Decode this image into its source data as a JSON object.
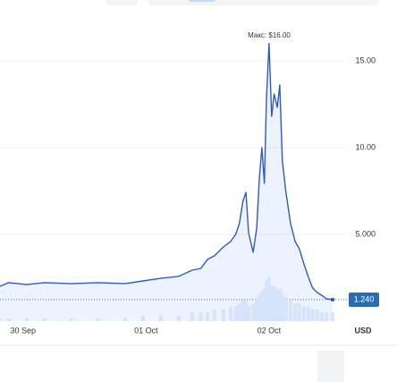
{
  "chart_data": {
    "type": "line",
    "max_label": "Макс: $16.00",
    "last_label": "1.240",
    "currency": "USD",
    "x": [
      -4.5,
      -2.8,
      0.7,
      4.2,
      9.4,
      14.7,
      19.9,
      23.4,
      26.9,
      30.4,
      33.0,
      34.7,
      36.0,
      37.3,
      39.1,
      40.5,
      41.5,
      42.2,
      42.9,
      43.5,
      44.0,
      44.9,
      45.6,
      46.1,
      46.6,
      47.1,
      47.5,
      48.0,
      48.5,
      49.0,
      49.6,
      50.1,
      50.6,
      51.3,
      52.2,
      53.1,
      53.9,
      54.8,
      55.7,
      56.5,
      57.4,
      58.3,
      59.2,
      60.4
    ],
    "series": [
      {
        "color": "#2d5bc4",
        "values": [
          2.01,
          2.22,
          2.11,
          2.22,
          2.16,
          2.22,
          2.16,
          2.32,
          2.47,
          2.58,
          2.94,
          3.04,
          3.56,
          3.76,
          4.28,
          4.59,
          5.0,
          5.62,
          6.91,
          7.42,
          5.1,
          3.97,
          5.36,
          8.2,
          10.0,
          7.94,
          12.84,
          16.0,
          11.8,
          13.09,
          12.32,
          13.61,
          9.23,
          7.42,
          5.62,
          4.59,
          4.18,
          3.3,
          2.53,
          1.91,
          1.65,
          1.49,
          1.29,
          1.24
        ]
      },
      {
        "color": "#d6e4fb",
        "axis": "y2",
        "values": [
          1,
          1,
          1,
          1,
          1,
          1,
          1,
          2,
          2,
          2,
          3,
          3,
          3,
          4,
          4,
          5,
          5,
          6,
          7,
          7,
          5,
          6,
          8,
          9,
          10,
          11,
          14,
          15,
          12,
          12,
          11,
          11,
          9,
          8,
          7,
          6,
          6,
          5,
          5,
          4,
          4,
          3,
          3,
          3
        ]
      }
    ],
    "xlim": [
      -4.5,
      62.5
    ],
    "xticks": [
      {
        "value": 0,
        "label": "30 Sep"
      },
      {
        "value": 24,
        "label": "01 Oct"
      },
      {
        "value": 48,
        "label": "02 Oct"
      }
    ],
    "ylim": [
      0,
      17
    ],
    "yticks": [
      {
        "value": 5,
        "label": "5.000"
      },
      {
        "value": 10,
        "label": "10.00"
      },
      {
        "value": 15,
        "label": "15.00"
      }
    ],
    "y2lim": [
      0,
      100
    ],
    "y2ticks": [],
    "grid": true
  }
}
